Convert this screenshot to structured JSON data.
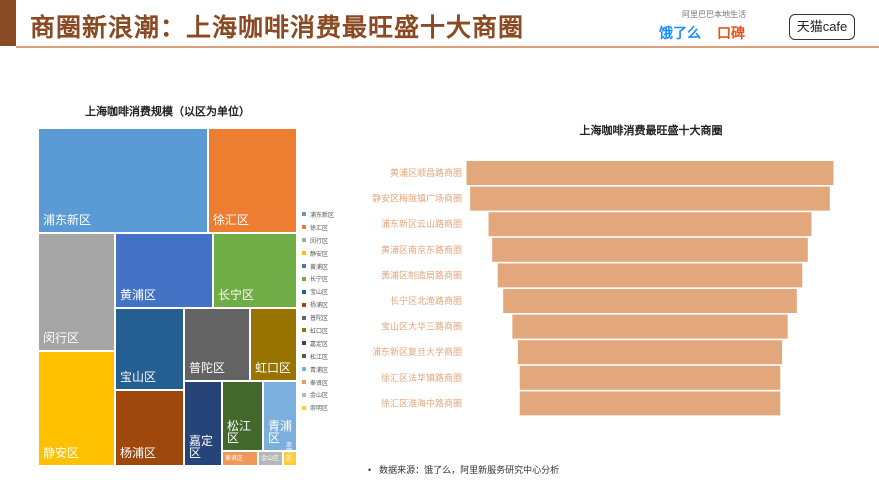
{
  "header": {
    "title": "商圈新浪潮：上海咖啡消费最旺盛十大商圈"
  },
  "logos": {
    "tagline": "阿里巴巴本地生活",
    "eleme": "饿了么",
    "koubei": "口碑",
    "tmall": "天猫cafe"
  },
  "colors": {
    "brand": "#8a4a23",
    "accent_rule": "#d9a07b",
    "funnel_bar": "#e3a77c"
  },
  "chart_data": [
    {
      "type": "treemap",
      "title": "上海咖啡消费规模（以区为单位）",
      "legend_position": "right",
      "categories": [
        "浦东新区",
        "徐汇区",
        "闵行区",
        "静安区",
        "黄浦区",
        "长宁区",
        "宝山区",
        "杨浦区",
        "普陀区",
        "虹口区",
        "嘉定区",
        "松江区",
        "青浦区",
        "奉贤区",
        "金山区",
        "崇明区"
      ],
      "values": [
        22.8,
        11.3,
        10.4,
        10.0,
        8.1,
        6.6,
        5.7,
        5.7,
        5.1,
        3.8,
        2.8,
        2.4,
        2.1,
        0.8,
        0.6,
        0.2
      ],
      "colors": [
        "#5b9bd5",
        "#ed7d31",
        "#a5a5a5",
        "#ffc000",
        "#4472c4",
        "#70ad47",
        "#255e91",
        "#9e480e",
        "#636363",
        "#997300",
        "#264478",
        "#43682b",
        "#7cafdd",
        "#f1975a",
        "#b7b7b7",
        "#ffcd33"
      ]
    },
    {
      "type": "funnel",
      "title": "上海咖啡消费最旺盛十大商圈",
      "categories": [
        "黄浦区顺昌路商圈",
        "静安区梅陇镇广场商圈",
        "浦东新区云山路商圈",
        "黄浦区南京东路商圈",
        "黄浦区制造局路商圈",
        "长宁区北渔路商圈",
        "宝山区大华三路商圈",
        "浦东新区复旦大学商圈",
        "徐汇区法华镇路商圈",
        "徐汇区淮海中路商圈"
      ],
      "values": [
        100,
        98,
        88,
        86,
        83,
        80,
        75,
        72,
        71,
        71
      ]
    }
  ],
  "footnote": {
    "bullet": "•",
    "text": "数据来源：饿了么，阿里新服务研究中心分析"
  }
}
